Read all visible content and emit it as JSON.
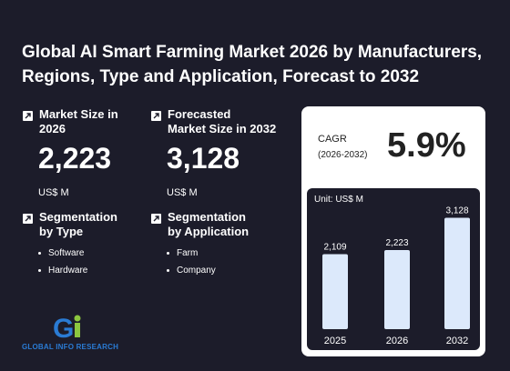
{
  "title": "Global AI Smart Farming Market 2026 by Manufacturers, Regions, Type and Application, Forecast to 2032",
  "market_size": {
    "label_line1": "Market Size in",
    "label_line2": "2026",
    "value": "2,223",
    "unit": "US$ M"
  },
  "forecast": {
    "label_line1": "Forecasted",
    "label_line2": "Market Size in 2032",
    "value": "3,128",
    "unit": "US$ M"
  },
  "seg_type": {
    "label_line1": "Segmentation",
    "label_line2": "by Type",
    "items": [
      "Software",
      "Hardware"
    ]
  },
  "seg_app": {
    "label_line1": "Segmentation",
    "label_line2": "by Application",
    "items": [
      "Farm",
      "Company"
    ]
  },
  "cagr": {
    "label": "CAGR",
    "period": "(2026-2032)",
    "value": "5.9%"
  },
  "logo": {
    "text": "GLOBAL INFO RESEARCH"
  },
  "colors": {
    "background": "#1c1c2a",
    "bar": "#dce9fb",
    "card": "#ffffff",
    "logo_blue": "#2a7bd4",
    "logo_green": "#8cc63f"
  },
  "chart_data": {
    "type": "bar",
    "unit_label": "Unit: US$ M",
    "categories": [
      "2025",
      "2026",
      "2032"
    ],
    "values": [
      2109,
      2223,
      3128
    ],
    "value_labels": [
      "2,109",
      "2,223",
      "3,128"
    ],
    "ylim": [
      0,
      3500
    ]
  }
}
